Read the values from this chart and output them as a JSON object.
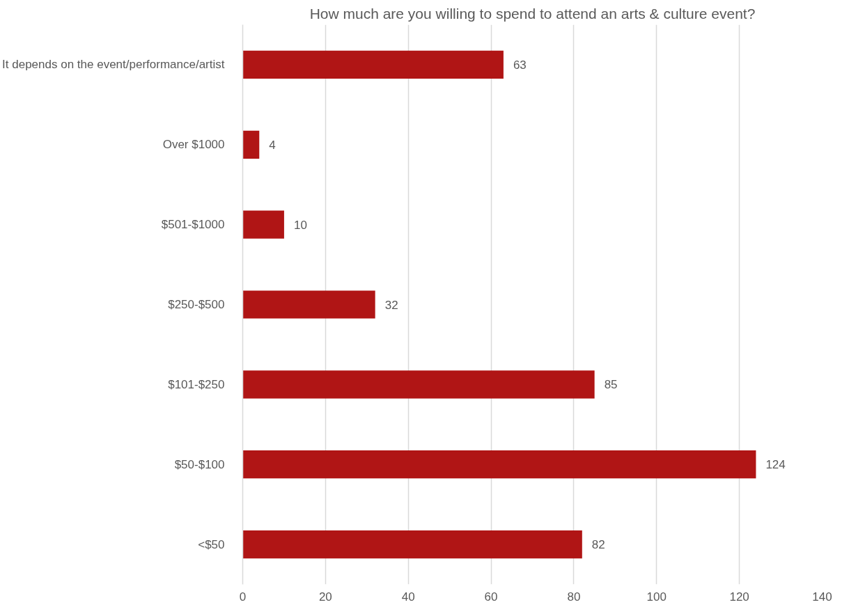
{
  "chart_data": {
    "type": "bar",
    "orientation": "horizontal",
    "title": "How much are you willing to spend to attend an arts & culture event?",
    "categories": [
      "It depends on the event/performance/artist",
      "Over $1000",
      "$501-$1000",
      "$250-$500",
      "$101-$250",
      "$50-$100",
      "<$50"
    ],
    "values": [
      63,
      4,
      10,
      32,
      85,
      124,
      82
    ],
    "color": "#b01515",
    "xlim": [
      0,
      140
    ],
    "xticks": [
      0,
      20,
      40,
      60,
      80,
      100,
      120,
      140
    ],
    "grid": "x",
    "data_labels": true
  }
}
